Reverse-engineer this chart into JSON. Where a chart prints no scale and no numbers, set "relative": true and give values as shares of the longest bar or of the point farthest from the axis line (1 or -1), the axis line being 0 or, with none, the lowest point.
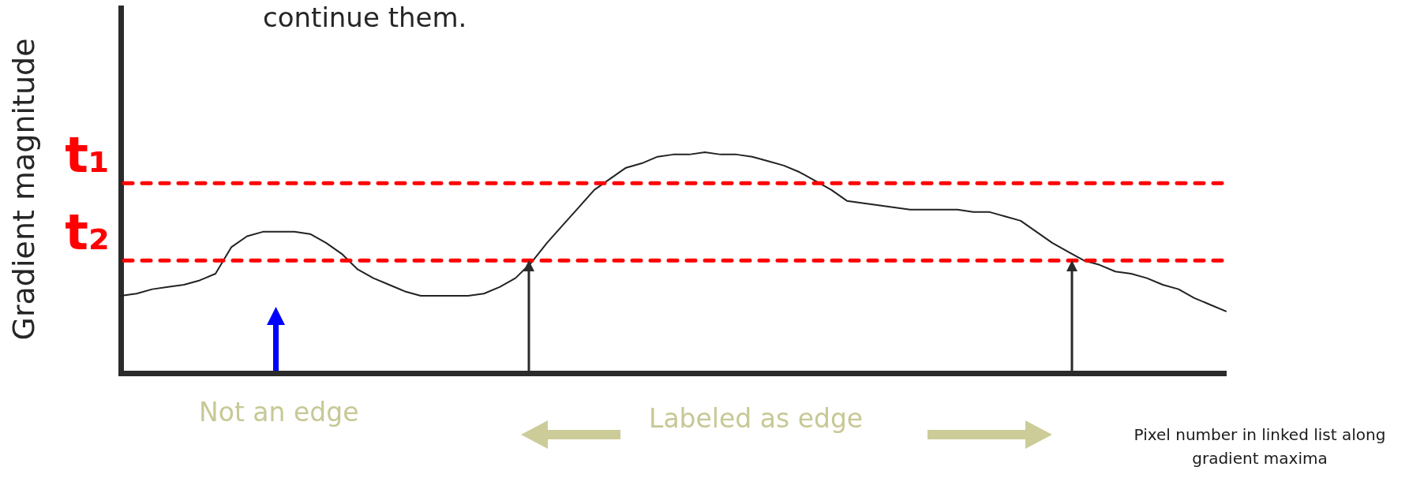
{
  "chart_data": {
    "type": "line",
    "relative": true,
    "xlabel": "Pixel number in linked list along gradient maxima",
    "ylabel": "Gradient magnitude",
    "categories": [
      null,
      null,
      null,
      null,
      null,
      null,
      null,
      null,
      null,
      null,
      null,
      null,
      null,
      null,
      null,
      null,
      null,
      null,
      null,
      null,
      null,
      null,
      null,
      null,
      null,
      null,
      null,
      null,
      null,
      null,
      null,
      null,
      null,
      null,
      null,
      null,
      null,
      null,
      null,
      null,
      null,
      null,
      null,
      null,
      null,
      null,
      null,
      null,
      null,
      null,
      null,
      null,
      null,
      null,
      null,
      null,
      null,
      null,
      null,
      null,
      null,
      null,
      null,
      null,
      null,
      null,
      null,
      null,
      null,
      null,
      null
    ],
    "series": [
      {
        "color": "#222222",
        "values": [
          0.35,
          0.36,
          0.38,
          0.39,
          0.4,
          0.42,
          0.45,
          0.57,
          0.62,
          0.64,
          0.64,
          0.64,
          0.63,
          0.59,
          0.54,
          0.47,
          0.43,
          0.4,
          0.37,
          0.35,
          0.35,
          0.35,
          0.35,
          0.36,
          0.39,
          0.43,
          0.5,
          0.59,
          0.67,
          0.75,
          0.83,
          0.88,
          0.93,
          0.95,
          0.98,
          0.99,
          0.99,
          1,
          0.99,
          0.99,
          0.98,
          0.96,
          0.94,
          0.91,
          0.87,
          0.83,
          0.78,
          0.77,
          0.76,
          0.75,
          0.74,
          0.74,
          0.74,
          0.74,
          0.73,
          0.73,
          0.71,
          0.69,
          0.64,
          0.59,
          0.55,
          0.51,
          0.49,
          0.46,
          0.45,
          0.43,
          0.4,
          0.38,
          0.34,
          0.31,
          0.28
        ]
      }
    ],
    "ref_lines": [
      {
        "axis": "y",
        "value": 0.86,
        "label": "t₁",
        "color": "#ff0000",
        "line_style": "dashed"
      },
      {
        "axis": "y",
        "value": 0.51,
        "label": "t₂",
        "color": "#ff0000",
        "line_style": "dashed"
      }
    ],
    "annotations": [
      "continue them.",
      "Not an edge",
      "Labeled as edge"
    ],
    "legend": false,
    "marker": "none",
    "line_style": "solid"
  }
}
